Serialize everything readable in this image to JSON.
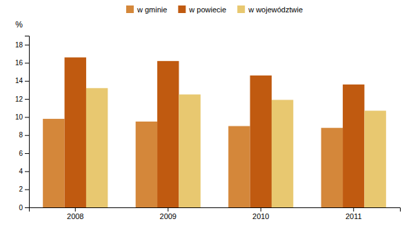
{
  "chart_data": {
    "type": "bar",
    "categories": [
      "2008",
      "2009",
      "2010",
      "2011"
    ],
    "series": [
      {
        "name": "w gminie",
        "color": "#D4873A",
        "values": [
          9.8,
          9.5,
          9.0,
          8.8
        ]
      },
      {
        "name": "w powiecie",
        "color": "#C05A10",
        "values": [
          16.6,
          16.2,
          14.6,
          13.6
        ]
      },
      {
        "name": "w województwie",
        "color": "#E8C870",
        "values": [
          13.2,
          12.5,
          11.9,
          10.7
        ]
      }
    ],
    "ylabel": "%",
    "ylim": [
      0,
      19
    ],
    "yticks": [
      0,
      2,
      4,
      6,
      8,
      10,
      12,
      14,
      16,
      18
    ],
    "grid": false,
    "legend": "top"
  }
}
